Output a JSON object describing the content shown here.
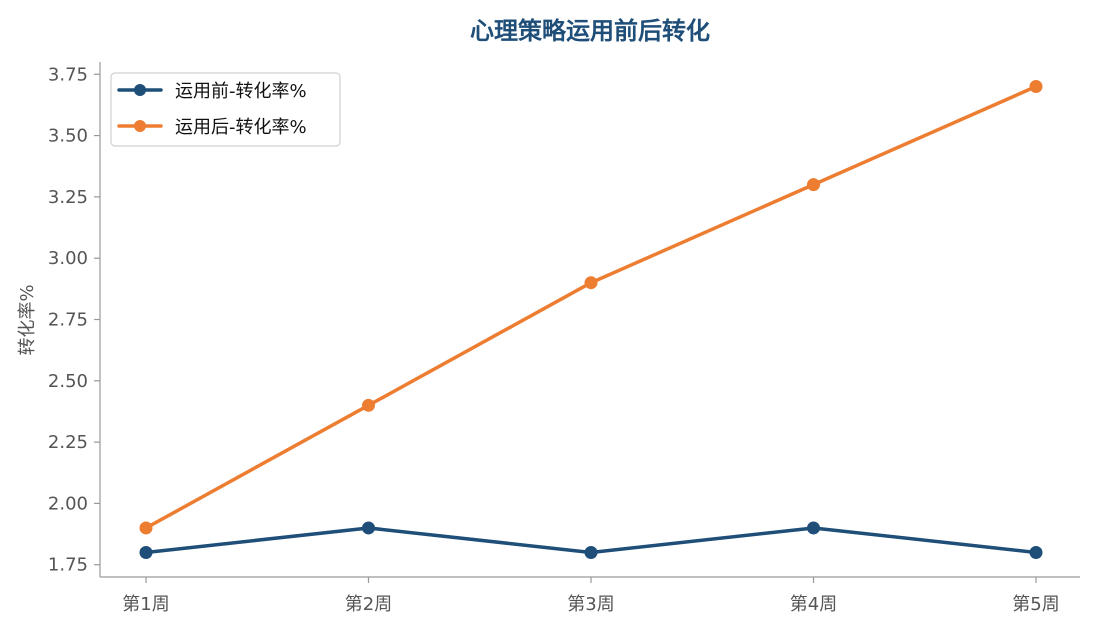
{
  "chart_data": {
    "type": "line",
    "title": "心理策略运用前后转化",
    "xlabel": "",
    "ylabel": "转化率%",
    "categories": [
      "第1周",
      "第2周",
      "第3周",
      "第4周",
      "第5周"
    ],
    "ylim": [
      1.7,
      3.8
    ],
    "yticks": [
      "1.75",
      "2.00",
      "2.25",
      "2.50",
      "2.75",
      "3.00",
      "3.25",
      "3.50",
      "3.75"
    ],
    "grid": false,
    "legend_position": "top-left",
    "series": [
      {
        "name": "运用前-转化率%",
        "values": [
          1.8,
          1.9,
          1.8,
          1.9,
          1.8
        ],
        "color": "#1f4e79"
      },
      {
        "name": "运用后-转化率%",
        "values": [
          1.9,
          2.4,
          2.9,
          3.3,
          3.7
        ],
        "color": "#ed7d31"
      }
    ],
    "title_color": "#1f4e79",
    "axis_color": "#999999"
  }
}
